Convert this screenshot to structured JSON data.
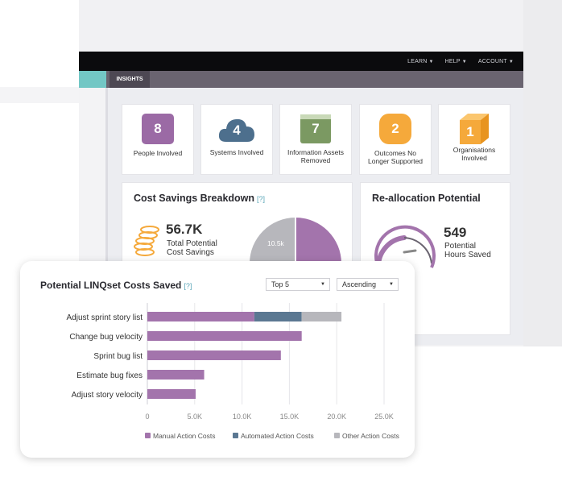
{
  "topnav": {
    "items": [
      {
        "label": "LEARN"
      },
      {
        "label": "HELP"
      },
      {
        "label": "ACCOUNT"
      }
    ]
  },
  "tabs": {
    "insights": "INSIGHTS"
  },
  "stats": [
    {
      "value": "8",
      "label": "People Involved",
      "color": "#9b6aa5"
    },
    {
      "value": "4",
      "label": "Systems Involved",
      "color": "#4d6f8d"
    },
    {
      "value": "7",
      "label": "Information Assets Removed",
      "color": "#7b9962"
    },
    {
      "value": "2",
      "label": "Outcomes No Longer Supported",
      "color": "#f5a93b"
    },
    {
      "value": "1",
      "label": "Organisations Involved",
      "color": "#f5a93b"
    }
  ],
  "cost_savings": {
    "title": "Cost Savings Breakdown",
    "help": "[?]",
    "amount": "56.7K",
    "amount_label_1": "Total Potential",
    "amount_label_2": "Cost Savings",
    "pie_label": "10.5k"
  },
  "reallocation": {
    "title": "Re-allocation Potential",
    "hours": "549",
    "hours_label_1": "Potential",
    "hours_label_2": "Hours Saved"
  },
  "linqset": {
    "title": "Potential LINQset Costs Saved",
    "help": "[?]",
    "filter_top": "Top 5",
    "filter_order": "Ascending"
  },
  "chart_data": {
    "type": "bar",
    "orientation": "horizontal",
    "stacked": true,
    "categories": [
      "Adjust sprint story list",
      "Change bug velocity",
      "Sprint bug list",
      "Estimate bug fixes",
      "Adjust story velocity"
    ],
    "series": [
      {
        "name": "Manual Action Costs",
        "color": "#a374ac",
        "values": [
          11300,
          16300,
          14100,
          6000,
          5100
        ]
      },
      {
        "name": "Automated Action Costs",
        "color": "#5b7892",
        "values": [
          5000,
          0,
          0,
          0,
          0
        ]
      },
      {
        "name": "Other Action Costs",
        "color": "#b7b7bc",
        "values": [
          4200,
          0,
          0,
          0,
          0
        ]
      }
    ],
    "xlim": [
      0,
      25000
    ],
    "xticks": [
      "0",
      "5.0K",
      "10.0K",
      "15.0K",
      "20.0K",
      "25.0K"
    ],
    "grid": true,
    "legend": "bottom"
  }
}
